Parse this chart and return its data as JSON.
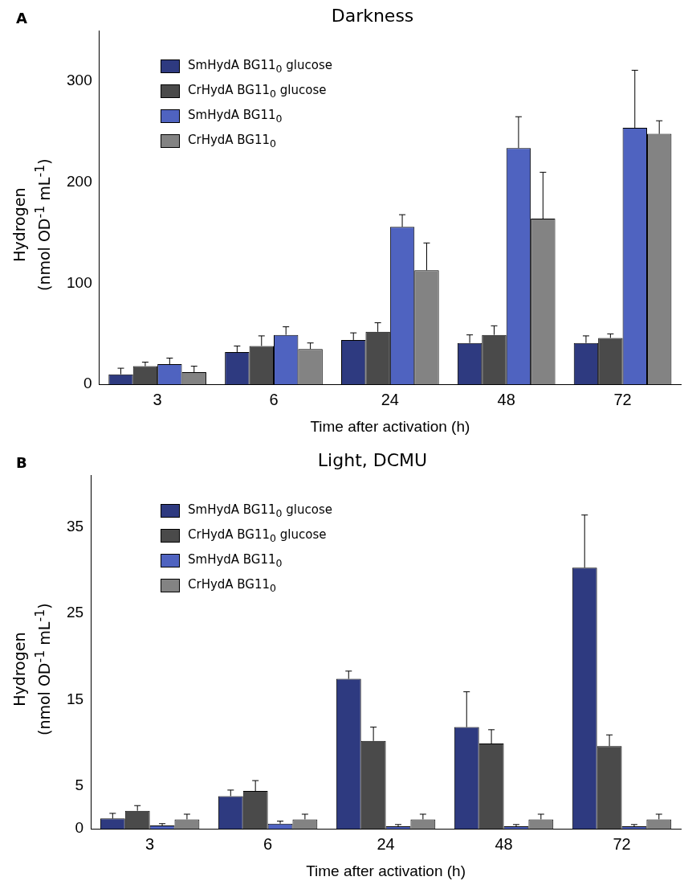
{
  "chart_data": [
    {
      "type": "bar",
      "title": "Darkness",
      "xlabel": "Time after activation (h)",
      "ylabel": "Hydrogen\n(nmol OD$^{-1}$ mL$^{-1}$)",
      "annotations": [
        "A"
      ],
      "categories": [
        "3",
        "6",
        "24",
        "48",
        "72"
      ],
      "ylim": [
        0,
        350
      ],
      "yticks": [
        0,
        100,
        200,
        300
      ],
      "grid": false,
      "legend": "top left",
      "series": [
        {
          "name": "SmHydA BG11$_{0}$ glucose",
          "color": "#2e3a80",
          "values": [
            10,
            32,
            44,
            41,
            41
          ],
          "errors": [
            6,
            6,
            7,
            8,
            7
          ]
        },
        {
          "name": "CrHydA BG11$_{0}$ glucose",
          "color": "#4a4a4a",
          "values": [
            18,
            38,
            52,
            49,
            46
          ],
          "errors": [
            4,
            10,
            9,
            9,
            4
          ]
        },
        {
          "name": "SmHydA BG11$_{0}$",
          "color": "#4f63c0",
          "values": [
            20,
            49,
            156,
            234,
            254
          ],
          "errors": [
            6,
            8,
            12,
            31,
            57
          ]
        },
        {
          "name": "CrHydA BG11$_{0}$",
          "color": "#838383",
          "values": [
            12,
            35,
            113,
            164,
            248
          ],
          "errors": [
            6,
            6,
            27,
            46,
            13
          ]
        }
      ]
    },
    {
      "type": "bar",
      "title": "Light, DCMU",
      "xlabel": "Time after activation (h)",
      "ylabel": "Hydrogen\n(nmol OD$^{-1}$ mL$^{-1}$)",
      "annotations": [
        "B"
      ],
      "categories": [
        "3",
        "6",
        "24",
        "48",
        "72"
      ],
      "ylim": [
        0,
        41
      ],
      "yticks": [
        0,
        5,
        15,
        25,
        35
      ],
      "grid": false,
      "legend": "top left",
      "series": [
        {
          "name": "SmHydA BG11$_{0}$ glucose",
          "color": "#2e3a80",
          "values": [
            1.2,
            3.8,
            17.4,
            11.8,
            30.3
          ],
          "errors": [
            0.6,
            0.7,
            0.9,
            4.1,
            6.1
          ]
        },
        {
          "name": "CrHydA BG11$_{0}$ glucose",
          "color": "#4a4a4a",
          "values": [
            2.1,
            4.4,
            10.2,
            9.9,
            9.6
          ],
          "errors": [
            0.6,
            1.2,
            1.6,
            1.6,
            1.3
          ]
        },
        {
          "name": "SmHydA BG11$_{0}$",
          "color": "#4f63c0",
          "values": [
            0.4,
            0.6,
            0.3,
            0.3,
            0.3
          ],
          "errors": [
            0.2,
            0.3,
            0.2,
            0.2,
            0.2
          ]
        },
        {
          "name": "CrHydA BG11$_{0}$",
          "color": "#838383",
          "values": [
            1.1,
            1.1,
            1.1,
            1.1,
            1.1
          ],
          "errors": [
            0.6,
            0.6,
            0.6,
            0.6,
            0.6
          ]
        }
      ]
    }
  ]
}
